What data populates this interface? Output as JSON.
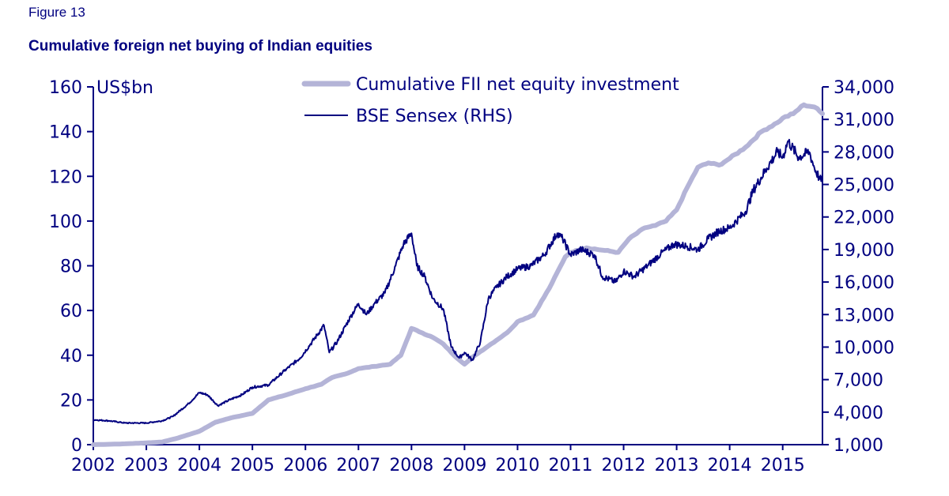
{
  "figure_label": "Figure 13",
  "title": "Cumulative foreign net buying of Indian equities",
  "colors": {
    "axis": "#000080",
    "fii": "#b4b4d7",
    "sensex": "#000080"
  },
  "chart_data": {
    "type": "line",
    "left_axis_label": "US$bn",
    "left_ylim": [
      0,
      160
    ],
    "left_ticks": [
      0,
      20,
      40,
      60,
      80,
      100,
      120,
      140,
      160
    ],
    "right_ylim": [
      1000,
      34000
    ],
    "right_ticks": [
      1000,
      4000,
      7000,
      10000,
      13000,
      16000,
      19000,
      22000,
      25000,
      28000,
      31000,
      34000
    ],
    "right_tick_labels": [
      "1,000",
      "4,000",
      "7,000",
      "10,000",
      "13,000",
      "16,000",
      "19,000",
      "22,000",
      "25,000",
      "28,000",
      "31,000",
      "34,000"
    ],
    "xlim": [
      2002,
      2015.75
    ],
    "x_ticks": [
      2002,
      2003,
      2004,
      2005,
      2006,
      2007,
      2008,
      2009,
      2010,
      2011,
      2012,
      2013,
      2014,
      2015
    ],
    "grid": false,
    "legend_position": "top-center",
    "series": [
      {
        "name": "Cumulative FII net equity investment",
        "axis": "left",
        "x": [
          2002,
          2002.5,
          2003,
          2003.3,
          2003.6,
          2004,
          2004.3,
          2004.6,
          2005,
          2005.3,
          2005.6,
          2006,
          2006.3,
          2006.5,
          2006.8,
          2007,
          2007.3,
          2007.6,
          2007.8,
          2008,
          2008.2,
          2008.4,
          2008.6,
          2008.8,
          2009,
          2009.2,
          2009.5,
          2009.8,
          2010,
          2010.3,
          2010.6,
          2010.9,
          2011,
          2011.3,
          2011.6,
          2011.9,
          2012.1,
          2012.4,
          2012.6,
          2012.8,
          2013,
          2013.2,
          2013.4,
          2013.6,
          2013.8,
          2014,
          2014.3,
          2014.6,
          2014.9,
          2015,
          2015.2,
          2015.4,
          2015.6,
          2015.75
        ],
        "values": [
          0,
          0.3,
          0.8,
          1.2,
          3,
          6,
          10,
          12,
          14,
          20,
          22,
          25,
          27,
          30,
          32,
          34,
          35,
          36,
          40,
          52,
          50,
          48,
          45,
          40,
          36,
          40,
          45,
          50,
          55,
          58,
          70,
          84,
          86,
          88,
          87,
          86,
          92,
          97,
          98,
          100,
          105,
          115,
          124,
          126,
          125,
          128,
          133,
          140,
          144,
          146,
          148,
          152,
          151,
          148
        ]
      },
      {
        "name": "BSE Sensex (RHS)",
        "axis": "right",
        "x": [
          2002,
          2002.3,
          2002.6,
          2002.8,
          2003,
          2003.3,
          2003.5,
          2003.8,
          2004,
          2004.15,
          2004.35,
          2004.6,
          2004.8,
          2005,
          2005.3,
          2005.6,
          2005.9,
          2006.1,
          2006.35,
          2006.45,
          2006.6,
          2006.85,
          2007,
          2007.15,
          2007.3,
          2007.5,
          2007.7,
          2007.85,
          2008,
          2008.1,
          2008.25,
          2008.4,
          2008.6,
          2008.75,
          2008.9,
          2009,
          2009.15,
          2009.3,
          2009.45,
          2009.6,
          2009.8,
          2010,
          2010.25,
          2010.5,
          2010.75,
          2010.85,
          2011,
          2011.2,
          2011.45,
          2011.6,
          2011.85,
          2012,
          2012.2,
          2012.45,
          2012.7,
          2012.95,
          2013.2,
          2013.4,
          2013.6,
          2013.8,
          2014,
          2014.3,
          2014.45,
          2014.7,
          2014.9,
          2015,
          2015.1,
          2015.3,
          2015.5,
          2015.6,
          2015.7,
          2015.75
        ],
        "values": [
          3300,
          3200,
          3000,
          3000,
          3000,
          3200,
          3600,
          4800,
          5800,
          5600,
          4600,
          5200,
          5600,
          6300,
          6500,
          7800,
          9000,
          10300,
          12000,
          9500,
          10500,
          12800,
          14000,
          13000,
          14000,
          15000,
          17500,
          19500,
          20500,
          17500,
          16500,
          14500,
          13500,
          10000,
          9000,
          9500,
          8800,
          10500,
          14500,
          15500,
          16500,
          17200,
          17500,
          18500,
          20500,
          20000,
          18500,
          19000,
          18500,
          16500,
          16000,
          17000,
          16500,
          17500,
          18600,
          19500,
          19300,
          19000,
          20000,
          20700,
          21000,
          22500,
          24500,
          26500,
          28000,
          27500,
          29000,
          27500,
          28000,
          26500,
          25500,
          25200
        ]
      }
    ]
  }
}
